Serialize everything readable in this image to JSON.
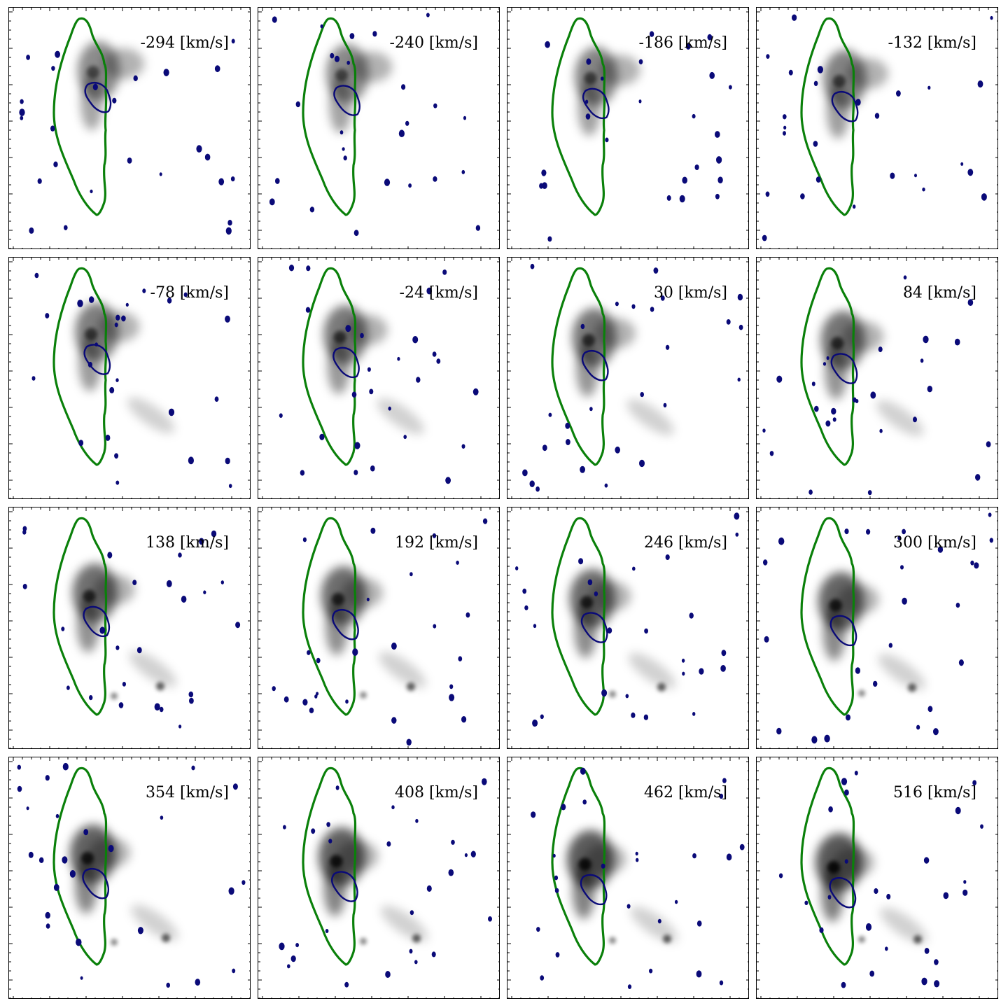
{
  "figure": {
    "description_type": "channel_map_grid",
    "rows": 4,
    "cols": 4,
    "colors": {
      "outline": "#0a800a",
      "contour": "#0a0a78",
      "emission": "#000000",
      "frame": "#000000",
      "background": "#ffffff"
    }
  },
  "panels": [
    {
      "label": "-294 [km/s]",
      "velocity_kms": -294
    },
    {
      "label": "-240 [km/s]",
      "velocity_kms": -240
    },
    {
      "label": "-186 [km/s]",
      "velocity_kms": -186
    },
    {
      "label": "-132 [km/s]",
      "velocity_kms": -132
    },
    {
      "label": "-78 [km/s]",
      "velocity_kms": -78
    },
    {
      "label": "-24 [km/s]",
      "velocity_kms": -24
    },
    {
      "label": "30 [km/s]",
      "velocity_kms": 30
    },
    {
      "label": "84 [km/s]",
      "velocity_kms": 84
    },
    {
      "label": "138 [km/s]",
      "velocity_kms": 138
    },
    {
      "label": "192 [km/s]",
      "velocity_kms": 192
    },
    {
      "label": "246 [km/s]",
      "velocity_kms": 246
    },
    {
      "label": "300 [km/s]",
      "velocity_kms": 300
    },
    {
      "label": "354 [km/s]",
      "velocity_kms": 354
    },
    {
      "label": "408 [km/s]",
      "velocity_kms": 408
    },
    {
      "label": "462 [km/s]",
      "velocity_kms": 462
    },
    {
      "label": "516 [km/s]",
      "velocity_kms": 516
    }
  ]
}
